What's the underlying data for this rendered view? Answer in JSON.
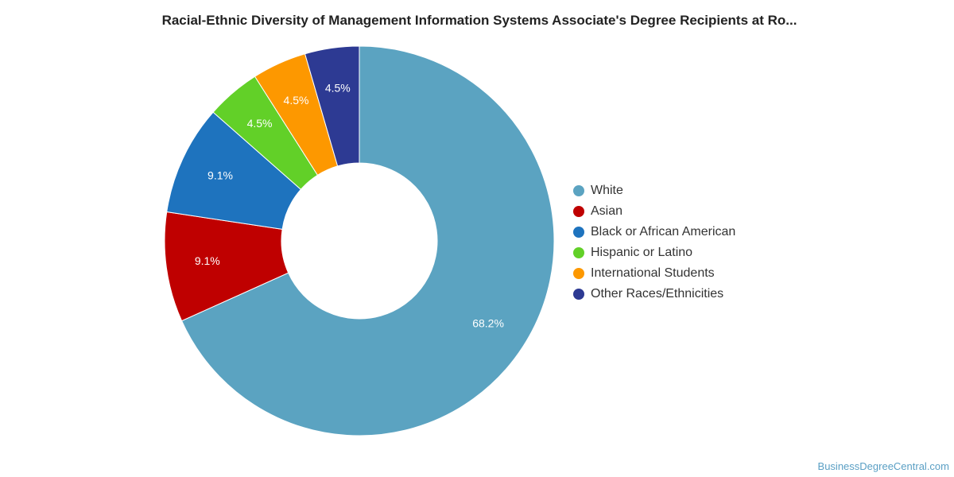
{
  "chart_data": {
    "type": "pie",
    "title": "Racial-Ethnic Diversity of Management Information Systems Associate's Degree Recipients at Ro...",
    "legend_position": "right",
    "donut": true,
    "series": [
      {
        "name": "White",
        "value": 68.2,
        "label": "68.2%",
        "color": "#5ba3c1"
      },
      {
        "name": "Asian",
        "value": 9.1,
        "label": "9.1%",
        "color": "#bf0000"
      },
      {
        "name": "Black or African American",
        "value": 9.1,
        "label": "9.1%",
        "color": "#1e73be"
      },
      {
        "name": "Hispanic or Latino",
        "value": 4.5,
        "label": "4.5%",
        "color": "#62d028"
      },
      {
        "name": "International Students",
        "value": 4.5,
        "label": "4.5%",
        "color": "#fd9800"
      },
      {
        "name": "Other Races/Ethnicities",
        "value": 4.5,
        "label": "4.5%",
        "color": "#2d3a93"
      }
    ]
  },
  "watermark": "BusinessDegreeCentral.com"
}
